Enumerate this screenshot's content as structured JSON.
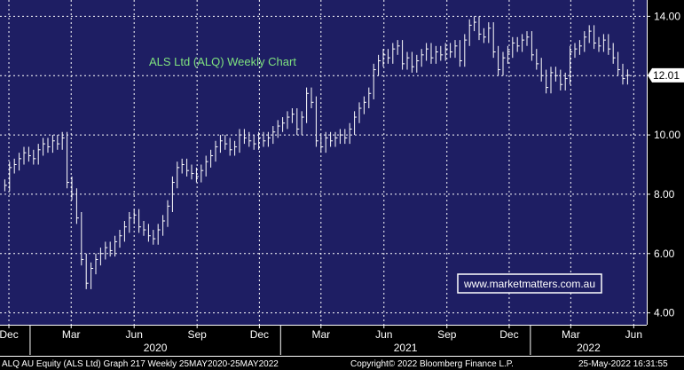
{
  "chart_data": {
    "type": "line",
    "title": "ALS Ltd (ALQ) Weekly Chart",
    "title_color": "#7fe27f",
    "background": "#1e1e63",
    "grid": true,
    "grid_color": "#ffffff",
    "bar_color": "#ffffff",
    "last_price_label": "12.01",
    "last_price": 12.01,
    "ylim": [
      3.6,
      14.55
    ],
    "y_ticks": [
      4,
      6,
      8,
      10,
      12,
      14
    ],
    "y_tick_labels": [
      "4.00",
      "6.00",
      "8.00",
      "10.00",
      "12.00",
      "14.00"
    ],
    "x_month_labels": [
      "Dec",
      "Mar",
      "Jun",
      "Sep",
      "Dec",
      "Mar",
      "Jun",
      "Sep",
      "Dec",
      "Mar",
      "Jun"
    ],
    "x_year_labels": [
      "2020",
      "2021",
      "2022"
    ],
    "x_start": "2019-11-18",
    "x_end": "2022-06-20",
    "month_ticks": [
      "2019-12-01",
      "2020-03-01",
      "2020-06-01",
      "2020-09-01",
      "2020-12-01",
      "2021-03-01",
      "2021-06-01",
      "2021-09-01",
      "2021-12-01",
      "2022-03-01",
      "2022-06-01"
    ],
    "year_ticks": [
      "2020-01-01",
      "2021-01-01",
      "2022-01-01"
    ],
    "series": [
      {
        "values": [
          [
            "2019-11-25",
            8.3
          ],
          [
            "2019-12-02",
            8.9
          ],
          [
            "2019-12-09",
            9.0
          ],
          [
            "2019-12-16",
            9.2
          ],
          [
            "2019-12-23",
            9.4
          ],
          [
            "2019-12-30",
            9.3
          ],
          [
            "2020-01-06",
            9.2
          ],
          [
            "2020-01-13",
            9.5
          ],
          [
            "2020-01-20",
            9.7
          ],
          [
            "2020-01-27",
            9.6
          ],
          [
            "2020-02-03",
            9.8
          ],
          [
            "2020-02-10",
            9.7
          ],
          [
            "2020-02-17",
            9.9
          ],
          [
            "2020-02-24",
            8.4
          ],
          [
            "2020-03-02",
            8.0
          ],
          [
            "2020-03-09",
            7.2
          ],
          [
            "2020-03-16",
            5.8
          ],
          [
            "2020-03-23",
            5.0
          ],
          [
            "2020-03-30",
            5.5
          ],
          [
            "2020-04-06",
            5.8
          ],
          [
            "2020-04-13",
            6.0
          ],
          [
            "2020-04-20",
            6.2
          ],
          [
            "2020-04-27",
            6.1
          ],
          [
            "2020-05-04",
            6.4
          ],
          [
            "2020-05-11",
            6.6
          ],
          [
            "2020-05-18",
            6.9
          ],
          [
            "2020-05-25",
            7.2
          ],
          [
            "2020-06-01",
            7.3
          ],
          [
            "2020-06-08",
            6.9
          ],
          [
            "2020-06-15",
            6.8
          ],
          [
            "2020-06-22",
            6.6
          ],
          [
            "2020-06-29",
            6.5
          ],
          [
            "2020-07-06",
            6.8
          ],
          [
            "2020-07-13",
            7.1
          ],
          [
            "2020-07-20",
            7.6
          ],
          [
            "2020-07-27",
            8.4
          ],
          [
            "2020-08-03",
            8.9
          ],
          [
            "2020-08-10",
            9.0
          ],
          [
            "2020-08-17",
            8.8
          ],
          [
            "2020-08-24",
            8.7
          ],
          [
            "2020-08-31",
            8.6
          ],
          [
            "2020-09-07",
            8.8
          ],
          [
            "2020-09-14",
            9.1
          ],
          [
            "2020-09-21",
            9.3
          ],
          [
            "2020-09-28",
            9.6
          ],
          [
            "2020-10-05",
            9.8
          ],
          [
            "2020-10-12",
            9.7
          ],
          [
            "2020-10-19",
            9.5
          ],
          [
            "2020-10-26",
            9.6
          ],
          [
            "2020-11-02",
            10.0
          ],
          [
            "2020-11-09",
            9.9
          ],
          [
            "2020-11-16",
            9.8
          ],
          [
            "2020-11-23",
            9.7
          ],
          [
            "2020-11-30",
            9.9
          ],
          [
            "2020-12-07",
            9.8
          ],
          [
            "2020-12-14",
            9.9
          ],
          [
            "2020-12-21",
            10.1
          ],
          [
            "2020-12-28",
            10.3
          ],
          [
            "2021-01-04",
            10.4
          ],
          [
            "2021-01-11",
            10.6
          ],
          [
            "2021-01-18",
            10.7
          ],
          [
            "2021-01-25",
            10.2
          ],
          [
            "2021-02-01",
            10.6
          ],
          [
            "2021-02-08",
            11.4
          ],
          [
            "2021-02-15",
            11.1
          ],
          [
            "2021-02-22",
            9.8
          ],
          [
            "2021-03-01",
            9.6
          ],
          [
            "2021-03-08",
            9.9
          ],
          [
            "2021-03-15",
            9.8
          ],
          [
            "2021-03-22",
            9.9
          ],
          [
            "2021-03-29",
            10.0
          ],
          [
            "2021-04-05",
            9.9
          ],
          [
            "2021-04-12",
            10.2
          ],
          [
            "2021-04-19",
            10.6
          ],
          [
            "2021-04-26",
            10.9
          ],
          [
            "2021-05-03",
            11.1
          ],
          [
            "2021-05-10",
            11.4
          ],
          [
            "2021-05-17",
            12.2
          ],
          [
            "2021-05-24",
            12.5
          ],
          [
            "2021-05-31",
            12.7
          ],
          [
            "2021-06-07",
            12.6
          ],
          [
            "2021-06-14",
            12.9
          ],
          [
            "2021-06-21",
            13.0
          ],
          [
            "2021-06-28",
            12.4
          ],
          [
            "2021-07-05",
            12.6
          ],
          [
            "2021-07-12",
            12.3
          ],
          [
            "2021-07-19",
            12.5
          ],
          [
            "2021-07-26",
            12.7
          ],
          [
            "2021-08-02",
            12.9
          ],
          [
            "2021-08-09",
            12.6
          ],
          [
            "2021-08-16",
            12.8
          ],
          [
            "2021-08-23",
            12.7
          ],
          [
            "2021-08-30",
            12.9
          ],
          [
            "2021-09-06",
            12.8
          ],
          [
            "2021-09-13",
            13.0
          ],
          [
            "2021-09-20",
            12.5
          ],
          [
            "2021-09-27",
            13.2
          ],
          [
            "2021-10-04",
            13.7
          ],
          [
            "2021-10-11",
            13.8
          ],
          [
            "2021-10-18",
            13.4
          ],
          [
            "2021-10-25",
            13.3
          ],
          [
            "2021-11-01",
            13.6
          ],
          [
            "2021-11-08",
            12.8
          ],
          [
            "2021-11-15",
            12.2
          ],
          [
            "2021-11-22",
            12.6
          ],
          [
            "2021-11-29",
            12.8
          ],
          [
            "2021-12-06",
            13.1
          ],
          [
            "2021-12-13",
            13.0
          ],
          [
            "2021-12-20",
            13.2
          ],
          [
            "2021-12-27",
            13.3
          ],
          [
            "2022-01-03",
            12.7
          ],
          [
            "2022-01-10",
            12.4
          ],
          [
            "2022-01-17",
            12.0
          ],
          [
            "2022-01-24",
            11.6
          ],
          [
            "2022-01-31",
            12.1
          ],
          [
            "2022-02-07",
            12.0
          ],
          [
            "2022-02-14",
            11.7
          ],
          [
            "2022-02-21",
            11.9
          ],
          [
            "2022-02-28",
            12.8
          ],
          [
            "2022-03-07",
            12.9
          ],
          [
            "2022-03-14",
            13.0
          ],
          [
            "2022-03-21",
            13.3
          ],
          [
            "2022-03-28",
            13.5
          ],
          [
            "2022-04-04",
            13.1
          ],
          [
            "2022-04-11",
            13.0
          ],
          [
            "2022-04-18",
            13.2
          ],
          [
            "2022-04-25",
            12.9
          ],
          [
            "2022-05-02",
            12.6
          ],
          [
            "2022-05-09",
            12.2
          ],
          [
            "2022-05-16",
            11.9
          ],
          [
            "2022-05-23",
            12.01
          ]
        ]
      }
    ]
  },
  "overlay": {
    "website_label": "www.marketmatters.com.au"
  },
  "footer": {
    "left_text": "ALQ AU Equity (ALS Ltd) Graph 217  Weekly 25MAY2020-25MAY2022",
    "center_text": "Copyright© 2022 Bloomberg Finance L.P.",
    "right_text": "25-May-2022 16:31:55"
  }
}
